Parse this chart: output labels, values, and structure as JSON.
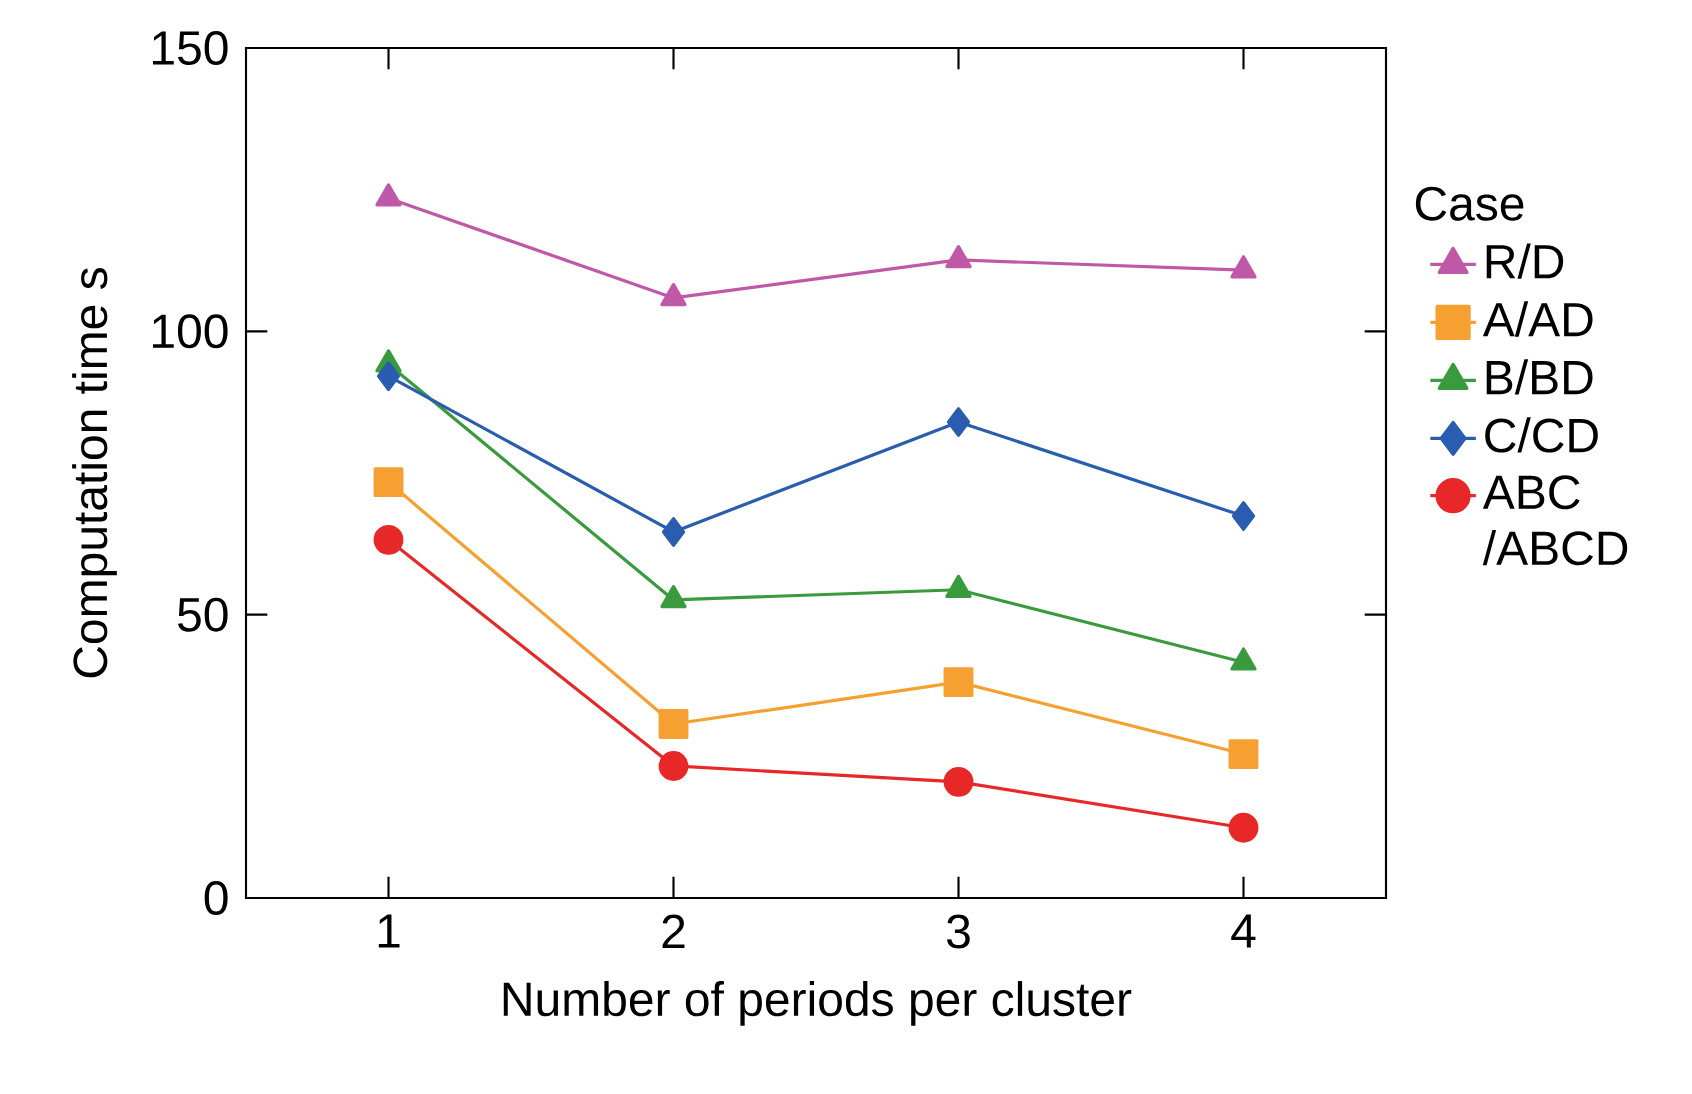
{
  "chart_data": {
    "type": "line",
    "xlabel": "Number of periods per cluster",
    "ylabel": "Computation time  s",
    "legend_title": "Case",
    "x": [
      1,
      2,
      3,
      4
    ],
    "xlim": [
      0.5,
      4.5
    ],
    "xticks": [
      1,
      2,
      3,
      4
    ],
    "ylim": [
      0,
      150
    ],
    "yticks": [
      0,
      50,
      100,
      150
    ],
    "grid": false,
    "legend": "right",
    "series": [
      {
        "name": "R/D",
        "color": "#c058a8",
        "marker": "triangle-down",
        "values": [
          123.5,
          105.9,
          112.6,
          110.8
        ]
      },
      {
        "name": "A/AD",
        "color": "#f5a030",
        "marker": "square",
        "values": [
          73.4,
          30.7,
          38.1,
          25.4
        ]
      },
      {
        "name": "B/BD",
        "color": "#3a9a3e",
        "marker": "triangle",
        "values": [
          94.2,
          52.6,
          54.4,
          41.6
        ]
      },
      {
        "name": "C/CD",
        "color": "#2a5cb0",
        "marker": "diamond",
        "values": [
          92.1,
          64.6,
          84.0,
          67.4
        ]
      },
      {
        "name": "ABC /ABCD",
        "color": "#e82828",
        "marker": "circle",
        "values": [
          63.2,
          23.3,
          20.5,
          12.4
        ]
      }
    ]
  }
}
